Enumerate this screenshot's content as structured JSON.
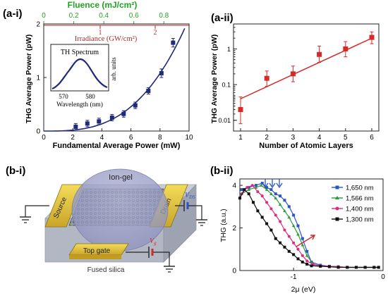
{
  "panels": {
    "a_i": "(a-i)",
    "a_ii": "(a-ii)",
    "b_i": "(b-i)",
    "b_ii": "(b-ii)"
  },
  "colors": {
    "navy": "#1f2a7a",
    "red": "#d42a2a",
    "green": "#2aa02a",
    "fluence": "#1fa51f",
    "irradiance": "#b02a2a"
  },
  "chart_data": [
    {
      "id": "a_i",
      "type": "scatter",
      "title": "",
      "xlabel": "Fundamental Average Power (mW)",
      "ylabel": "THG Average Power (pW)",
      "xlim": [
        0,
        10
      ],
      "ylim": [
        0,
        2
      ],
      "xticks": [
        "0",
        "2",
        "4",
        "6",
        "8",
        "10"
      ],
      "yticks": [
        "0",
        "1",
        "2"
      ],
      "top_axis_label": "Fluence (mJ/cm²)",
      "top_ticks": [
        "0",
        "0.2",
        "0.4",
        "0.6",
        "0.8"
      ],
      "irradiance_label": "Irradiance (GW/cm²)",
      "irradiance_ticks": [
        "1",
        "2"
      ],
      "points": [
        {
          "x": 2.2,
          "y": 0.08,
          "err": 0.06
        },
        {
          "x": 3.0,
          "y": 0.14,
          "err": 0.06
        },
        {
          "x": 3.8,
          "y": 0.18,
          "err": 0.06
        },
        {
          "x": 4.7,
          "y": 0.25,
          "err": 0.06
        },
        {
          "x": 5.5,
          "y": 0.32,
          "err": 0.06
        },
        {
          "x": 6.3,
          "y": 0.48,
          "err": 0.06
        },
        {
          "x": 7.2,
          "y": 0.75,
          "err": 0.06
        },
        {
          "x": 8.1,
          "y": 1.08,
          "err": 0.08
        },
        {
          "x": 8.9,
          "y": 1.65,
          "err": 0.08
        }
      ],
      "inset": {
        "title": "TH Spectrum",
        "xlabel": "Wavelength (nm)",
        "ylabel": "arb. units",
        "xticks": [
          "570",
          "580"
        ]
      }
    },
    {
      "id": "a_ii",
      "type": "scatter",
      "title": "",
      "xlabel": "Number of Atomic Layers",
      "ylabel": "THG Average Power (pW)",
      "yscale": "log",
      "xticks": [
        "1",
        "2",
        "3",
        "4",
        "5",
        "6"
      ],
      "yticks": [
        "0.01",
        "0.1",
        "1"
      ],
      "points": [
        {
          "x": 1,
          "y": 0.02,
          "lo": 0.008,
          "hi": 0.045
        },
        {
          "x": 2,
          "y": 0.15,
          "lo": 0.09,
          "hi": 0.24
        },
        {
          "x": 3,
          "y": 0.2,
          "lo": 0.12,
          "hi": 0.33
        },
        {
          "x": 4,
          "y": 0.7,
          "lo": 0.42,
          "hi": 1.2
        },
        {
          "x": 5,
          "y": 1.0,
          "lo": 0.6,
          "hi": 1.6
        },
        {
          "x": 6,
          "y": 2.1,
          "lo": 1.4,
          "hi": 3.0
        }
      ]
    },
    {
      "id": "b_ii",
      "type": "line",
      "title": "",
      "xlabel": "2μ (eV)",
      "ylabel": "THG (a.u.)",
      "xlim": [
        -1.6,
        0
      ],
      "ylim": [
        0,
        4.3
      ],
      "xticks": [
        "-1",
        "0"
      ],
      "yticks": [
        "0",
        "2",
        "4"
      ],
      "legend_position": "top-right",
      "series": [
        {
          "name": "1,650 nm",
          "color": "#2a54c8",
          "marker": "square",
          "x": [
            -1.58,
            -1.5,
            -1.42,
            -1.35,
            -1.3,
            -1.25,
            -1.2,
            -1.15,
            -1.1,
            -1.05,
            -1.0,
            -0.95,
            -0.9,
            -0.85,
            -0.8,
            -0.7,
            -0.6,
            -0.5,
            -0.4,
            -0.3,
            -0.2,
            -0.1,
            -0.05
          ],
          "y": [
            3.8,
            3.9,
            4.0,
            4.1,
            3.9,
            3.8,
            3.6,
            3.5,
            3.3,
            3.0,
            2.6,
            2.1,
            1.5,
            0.9,
            0.4,
            0.25,
            0.2,
            0.18,
            0.15,
            0.15,
            0.15,
            0.15,
            0.15
          ]
        },
        {
          "name": "1,566 nm",
          "color": "#2a9a3a",
          "marker": "triangle",
          "x": [
            -1.58,
            -1.5,
            -1.42,
            -1.36,
            -1.3,
            -1.25,
            -1.2,
            -1.15,
            -1.1,
            -1.05,
            -1.0,
            -0.95,
            -0.9,
            -0.85,
            -0.78,
            -0.7,
            -0.6,
            -0.5,
            -0.4,
            -0.3,
            -0.2,
            -0.1,
            -0.05
          ],
          "y": [
            3.6,
            3.8,
            3.9,
            4.0,
            3.8,
            3.6,
            3.4,
            3.1,
            2.8,
            2.5,
            2.1,
            1.7,
            1.2,
            0.7,
            0.3,
            0.22,
            0.2,
            0.18,
            0.15,
            0.15,
            0.15,
            0.15,
            0.15
          ]
        },
        {
          "name": "1,400 nm",
          "color": "#e0287e",
          "marker": "circle",
          "x": [
            -1.58,
            -1.52,
            -1.46,
            -1.4,
            -1.35,
            -1.3,
            -1.25,
            -1.2,
            -1.15,
            -1.1,
            -1.05,
            -1.0,
            -0.95,
            -0.9,
            -0.85,
            -0.78,
            -0.7,
            -0.6,
            -0.5,
            -0.4,
            -0.3,
            -0.2,
            -0.1,
            -0.05
          ],
          "y": [
            3.6,
            3.9,
            4.0,
            3.7,
            3.5,
            3.2,
            2.9,
            2.6,
            2.3,
            1.9,
            1.6,
            1.3,
            1.0,
            0.7,
            0.45,
            0.28,
            0.22,
            0.2,
            0.18,
            0.15,
            0.15,
            0.15,
            0.15,
            0.15
          ]
        },
        {
          "name": "1,300 nm",
          "color": "#111111",
          "marker": "square",
          "x": [
            -1.6,
            -1.55,
            -1.5,
            -1.45,
            -1.4,
            -1.35,
            -1.3,
            -1.25,
            -1.2,
            -1.15,
            -1.1,
            -1.05,
            -1.0,
            -0.95,
            -0.9,
            -0.85,
            -0.8,
            -0.7,
            -0.6,
            -0.5,
            -0.4,
            -0.3,
            -0.2,
            -0.1,
            -0.05
          ],
          "y": [
            3.4,
            3.8,
            3.6,
            3.2,
            2.8,
            2.5,
            2.2,
            1.9,
            1.5,
            1.3,
            1.1,
            0.9,
            0.75,
            0.55,
            0.4,
            0.3,
            0.22,
            0.2,
            0.18,
            0.15,
            0.15,
            0.15,
            0.15,
            0.15,
            0.15
          ]
        }
      ]
    }
  ],
  "device": {
    "ion_gel_label": "Ion-gel",
    "source_label": "Source",
    "drain_label": "Drain",
    "top_gate_label": "Top gate",
    "substrate_label": "Fused silica",
    "vds_label": "V",
    "vds_sub": "DS",
    "vg_label": "V",
    "vg_sub": "g"
  }
}
